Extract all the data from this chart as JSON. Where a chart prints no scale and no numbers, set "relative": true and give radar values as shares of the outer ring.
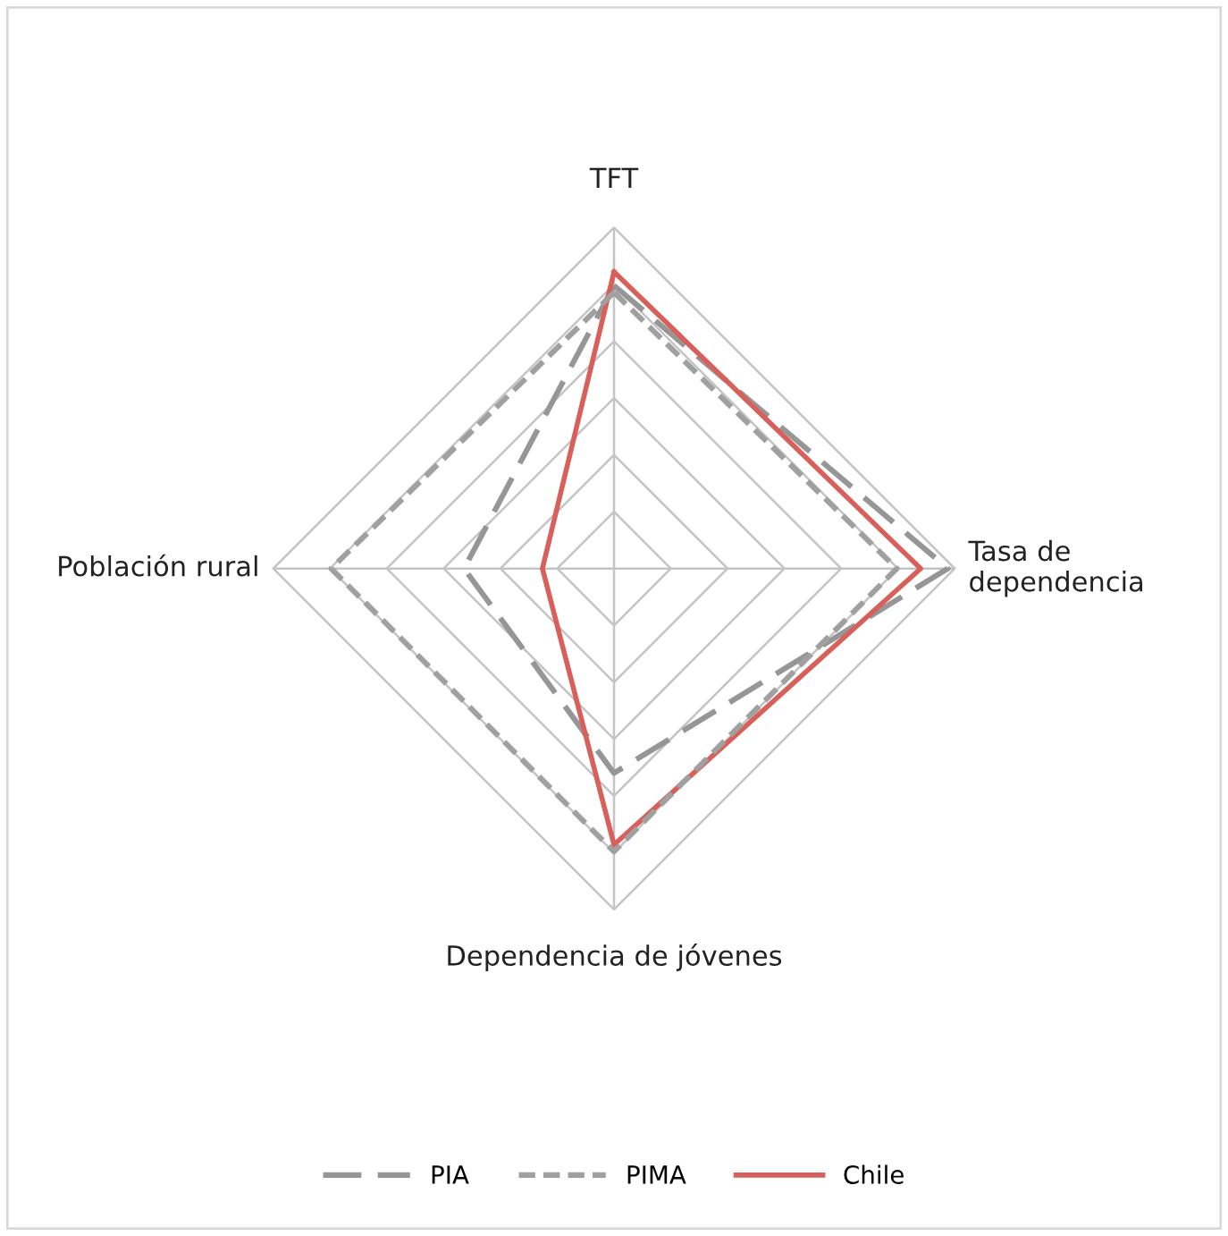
{
  "chart_data": {
    "type": "radar",
    "relative": true,
    "grid": true,
    "legend": "bottom",
    "categories": [
      "TFT",
      "Tasa de\ndependencia",
      "Dependencia de jóvenes",
      "Población rural"
    ],
    "series": [
      {
        "name": "PIA",
        "color": "#969696",
        "line_style": "dashed",
        "values": [
          0.83,
          0.98,
          0.6,
          0.44
        ]
      },
      {
        "name": "PIMA",
        "color": "#a0a0a0",
        "line_style": "dotted",
        "values": [
          0.81,
          0.83,
          0.83,
          0.83
        ]
      },
      {
        "name": "Chile",
        "color": "#d9605a",
        "line_style": "solid",
        "values": [
          0.87,
          0.9,
          0.81,
          0.21
        ]
      }
    ]
  }
}
